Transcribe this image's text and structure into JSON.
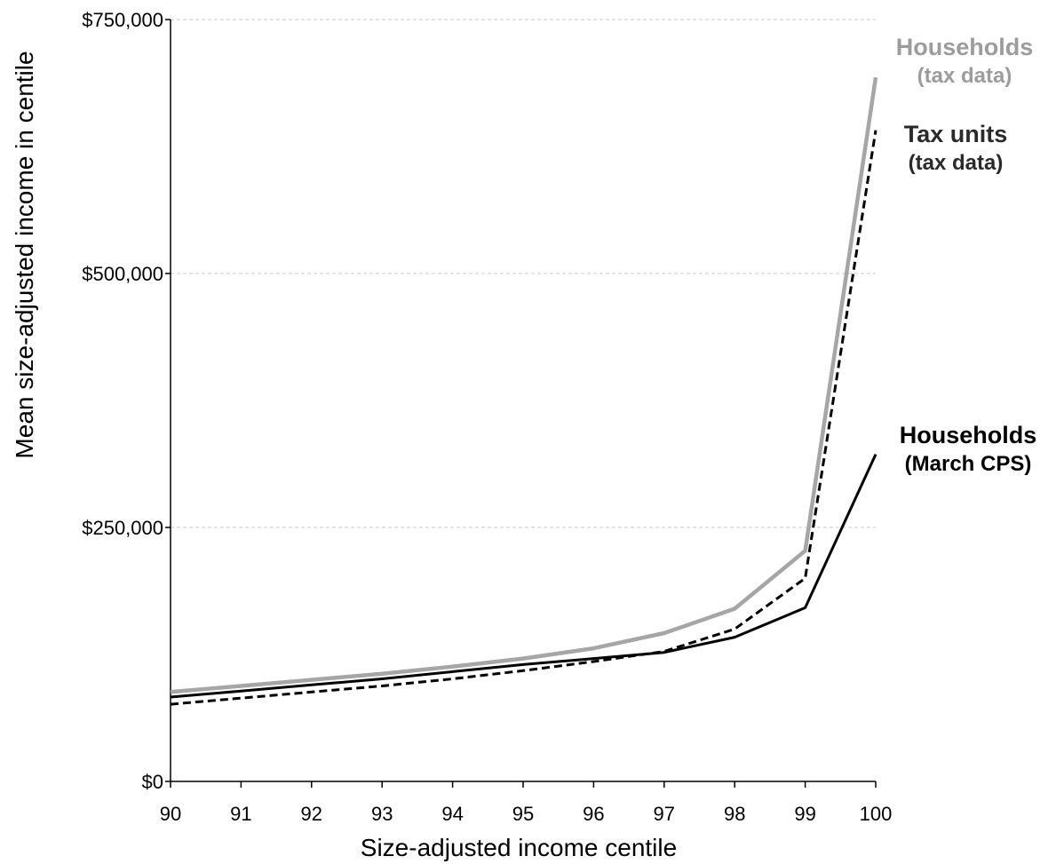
{
  "chart_data": {
    "type": "line",
    "title": "",
    "xlabel": "Size-adjusted income centile",
    "ylabel": "Mean size-adjusted income in centile",
    "x": [
      90,
      91,
      92,
      93,
      94,
      95,
      96,
      97,
      98,
      99,
      100
    ],
    "xlim": [
      90,
      100
    ],
    "ylim": [
      0,
      750000
    ],
    "y_ticks": [
      0,
      250000,
      500000,
      750000
    ],
    "y_tick_labels": [
      "$0",
      "$250,000",
      "$500,000",
      "$750,000"
    ],
    "x_tick_labels": [
      "90",
      "91",
      "92",
      "93",
      "94",
      "95",
      "96",
      "97",
      "98",
      "99",
      "100"
    ],
    "grid": "horizontal dashed",
    "legend": "inline labels at right end of lines",
    "series": [
      {
        "key": "hh_tax",
        "label_lines": [
          "Households",
          "(tax data)"
        ],
        "color": "#a6a6a6",
        "dash": "solid",
        "values": [
          88000,
          94000,
          100000,
          106000,
          113000,
          121000,
          131000,
          146000,
          170000,
          227000,
          693000
        ]
      },
      {
        "key": "tu_tax",
        "label_lines": [
          "Tax units",
          "(tax data)"
        ],
        "color": "#000000",
        "dash": "dashed",
        "values": [
          76000,
          82000,
          88000,
          94000,
          101000,
          109000,
          118000,
          128000,
          150000,
          200000,
          641000
        ]
      },
      {
        "key": "hh_cps",
        "label_lines": [
          "Households",
          "(March CPS)"
        ],
        "color": "#000000",
        "dash": "solid",
        "values": [
          83000,
          89000,
          95000,
          101000,
          108000,
          115000,
          121000,
          127000,
          142000,
          171000,
          322000
        ]
      }
    ]
  }
}
